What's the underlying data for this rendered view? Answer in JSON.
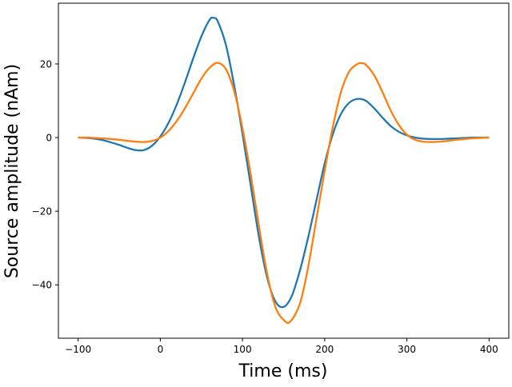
{
  "chart_data": {
    "type": "line",
    "title": "",
    "xlabel": "Time (ms)",
    "ylabel": "Source amplitude (nAm)",
    "xlim": [
      -124,
      424
    ],
    "ylim": [
      -54.5,
      36.5
    ],
    "xticks": [
      -100,
      0,
      100,
      200,
      300,
      400
    ],
    "yticks": [
      -40,
      -20,
      0,
      20
    ],
    "xtick_labels": [
      "−100",
      "0",
      "100",
      "200",
      "300",
      "400"
    ],
    "ytick_labels": [
      "−40",
      "−20",
      "0",
      "20"
    ],
    "grid": false,
    "series": [
      {
        "color": "#1f77b4",
        "x": [
          -100,
          -90,
          -80,
          -70,
          -60,
          -50,
          -40,
          -30,
          -20,
          -10,
          0,
          10,
          20,
          30,
          40,
          50,
          60,
          65,
          70,
          80,
          90,
          100,
          110,
          120,
          130,
          140,
          150,
          160,
          170,
          180,
          190,
          200,
          210,
          220,
          230,
          240,
          250,
          260,
          270,
          280,
          290,
          300,
          310,
          320,
          330,
          340,
          350,
          360,
          370,
          380,
          390,
          400
        ],
        "y": [
          0,
          -0.1,
          -0.3,
          -0.7,
          -1.3,
          -2.0,
          -2.8,
          -3.4,
          -3.4,
          -2.2,
          0.3,
          4,
          9,
          15,
          21.5,
          27.5,
          32,
          32.5,
          31.5,
          25,
          14,
          1,
          -13,
          -27,
          -38,
          -44.5,
          -46,
          -43,
          -36,
          -27,
          -17,
          -7,
          1,
          6.5,
          9.5,
          10.5,
          10,
          8,
          5.5,
          3.2,
          1.6,
          0.6,
          0,
          -0.3,
          -0.4,
          -0.4,
          -0.3,
          -0.2,
          -0.1,
          0,
          0,
          0
        ]
      },
      {
        "color": "#ff7f0e",
        "x": [
          -100,
          -90,
          -80,
          -70,
          -60,
          -50,
          -40,
          -30,
          -20,
          -10,
          0,
          10,
          20,
          30,
          40,
          50,
          60,
          70,
          80,
          90,
          100,
          110,
          120,
          130,
          140,
          150,
          158,
          170,
          180,
          190,
          200,
          210,
          220,
          230,
          240,
          245,
          250,
          260,
          270,
          280,
          290,
          300,
          310,
          320,
          330,
          340,
          350,
          360,
          370,
          380,
          390,
          400
        ],
        "y": [
          0,
          0,
          -0.1,
          -0.2,
          -0.4,
          -0.6,
          -0.9,
          -1.1,
          -1.2,
          -0.9,
          0,
          1.8,
          4.5,
          8,
          12,
          16,
          19,
          20.3,
          18.5,
          12.5,
          2.5,
          -10,
          -24,
          -37,
          -46,
          -49.5,
          -50,
          -45,
          -35,
          -22,
          -9,
          3,
          12.5,
          18,
          20,
          20.2,
          19.8,
          17,
          12.5,
          7.5,
          3.5,
          0.8,
          -0.6,
          -1.1,
          -1.2,
          -1.1,
          -0.9,
          -0.6,
          -0.4,
          -0.2,
          -0.1,
          0
        ]
      }
    ]
  }
}
